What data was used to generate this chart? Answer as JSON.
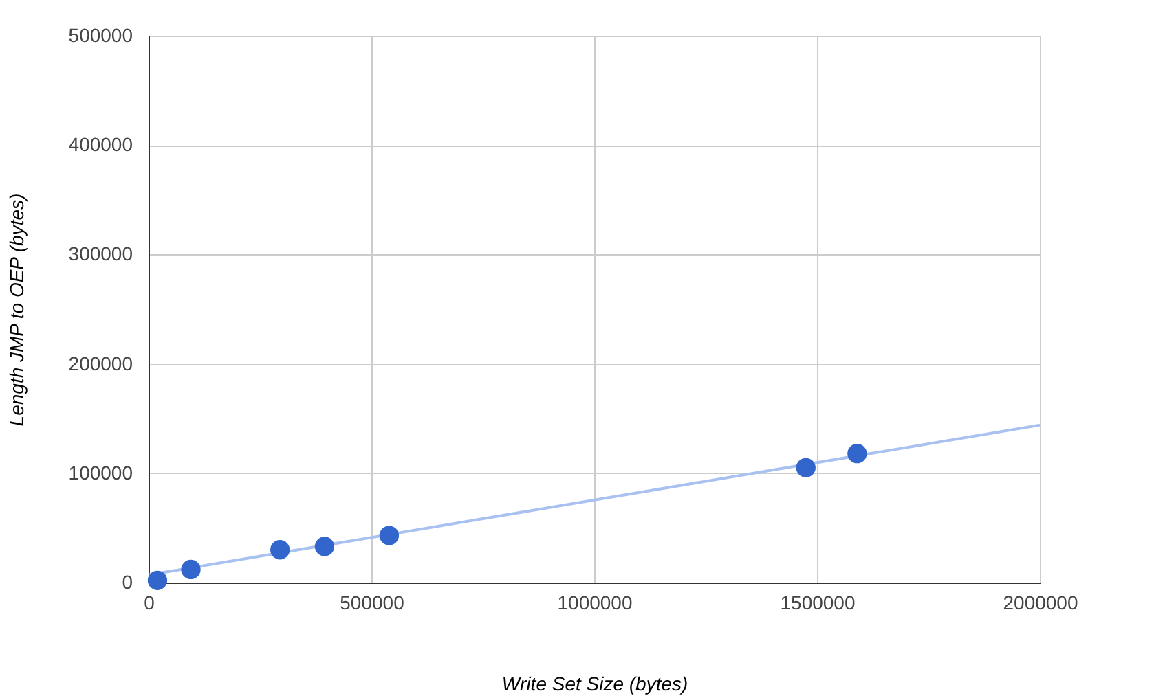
{
  "chart_data": {
    "type": "scatter",
    "xlabel": "Write Set Size (bytes)",
    "ylabel": "Length JMP to OEP (bytes)",
    "xlim": [
      0,
      2000000
    ],
    "xticks": [
      0,
      500000,
      1000000,
      1500000,
      2000000
    ],
    "ylim": [
      0,
      500000
    ],
    "yticks": [
      0,
      100000,
      200000,
      300000,
      400000,
      500000
    ],
    "grid": true,
    "series": [
      {
        "type": "line",
        "color": "#a9c1f0",
        "x": [
          0,
          2000000
        ],
        "values": [
          7000,
          144000
        ]
      },
      {
        "color": "#3366cc",
        "marker": "circle",
        "x": [
          20000,
          95000,
          295000,
          395000,
          540000,
          1475000,
          1590000
        ],
        "values": [
          2000,
          12000,
          30000,
          33000,
          43000,
          105000,
          118000
        ]
      }
    ]
  }
}
